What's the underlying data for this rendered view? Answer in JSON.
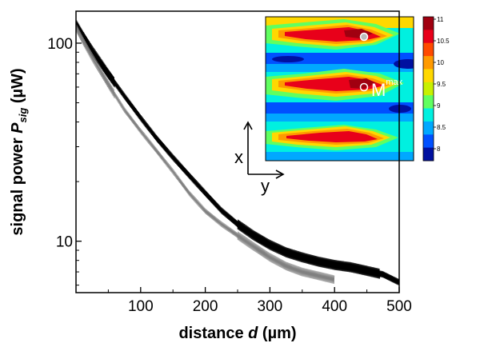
{
  "chart_data": {
    "type": "line",
    "title": "",
    "xlabel": "distance d (µm)",
    "ylabel": "signal power P_sig (µW)",
    "xlabel_parts": {
      "pre": "distance ",
      "var": "d",
      "post": " (µm)"
    },
    "ylabel_parts": {
      "pre": "signal power ",
      "var": "P",
      "sub": "sig",
      "post": " (µW)"
    },
    "xlim": [
      0,
      500
    ],
    "ylim": [
      5.5,
      145
    ],
    "yscale": "log",
    "xticks": [
      100,
      200,
      300,
      400,
      500
    ],
    "yticks": [
      10,
      100
    ],
    "grid": false,
    "series": [
      {
        "color": "#000000",
        "x": [
          0,
          10,
          25,
          50,
          75,
          100,
          125,
          150,
          175,
          200,
          225,
          250,
          275,
          300,
          325,
          350,
          375,
          400,
          425,
          450,
          475,
          500
        ],
        "y": [
          125,
          110,
          92,
          70,
          54,
          42,
          33,
          26.5,
          21.5,
          17.5,
          14.3,
          12.2,
          10.7,
          9.6,
          8.8,
          8.3,
          7.9,
          7.6,
          7.4,
          7.1,
          6.8,
          6.2
        ]
      },
      {
        "color": "#808080",
        "x": [
          0,
          10,
          25,
          50,
          75,
          100,
          125,
          150,
          175,
          200,
          225,
          250,
          275,
          300,
          325,
          350,
          375,
          400
        ],
        "y": [
          120,
          104,
          85,
          62,
          46,
          36,
          28.5,
          22.5,
          17.5,
          14.2,
          12.2,
          10.7,
          9.4,
          8.3,
          7.5,
          7.0,
          6.7,
          6.4
        ]
      }
    ]
  },
  "inset": {
    "axis_x_label": "x",
    "axis_y_label": "y",
    "marker_label": "M",
    "marker_sup": "max",
    "colorbar_ticks": [
      "11",
      "10.5",
      "10",
      "9.5",
      "9",
      "8.5",
      "8"
    ],
    "colorbar_colors": [
      "#a00010",
      "#e8001a",
      "#ff4a00",
      "#ff9a00",
      "#ffd800",
      "#c8f000",
      "#60ff60",
      "#00f0e0",
      "#00a8ff",
      "#0050ff",
      "#0010a0"
    ]
  }
}
